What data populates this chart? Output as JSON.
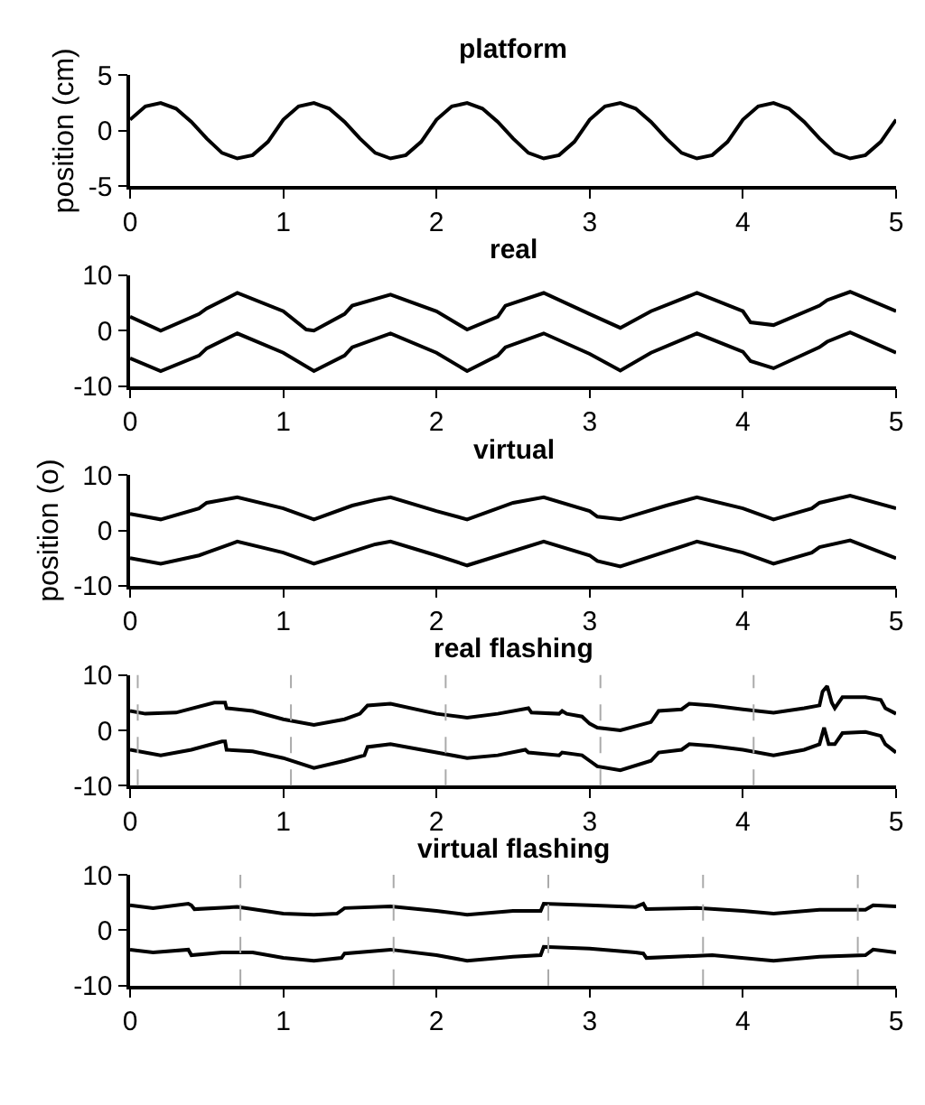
{
  "chart_data": [
    {
      "type": "line",
      "title": "platform",
      "ylabel": "position (cm)",
      "xlim": [
        0,
        5
      ],
      "xticks": [
        0,
        1,
        2,
        3,
        4,
        5
      ],
      "ylim": [
        -5,
        5
      ],
      "yticks": [
        -5,
        0,
        5
      ],
      "marker": "none",
      "line_style": "solid",
      "series": [
        {
          "color": "#000000",
          "x": [
            0,
            0.1,
            0.2,
            0.3,
            0.4,
            0.5,
            0.6,
            0.7,
            0.8,
            0.9,
            1.0,
            1.1,
            1.2,
            1.3,
            1.4,
            1.5,
            1.6,
            1.7,
            1.8,
            1.9,
            2.0,
            2.1,
            2.2,
            2.3,
            2.4,
            2.5,
            2.6,
            2.7,
            2.8,
            2.9,
            3.0,
            3.1,
            3.2,
            3.3,
            3.4,
            3.5,
            3.6,
            3.7,
            3.8,
            3.9,
            4.0,
            4.1,
            4.2,
            4.3,
            4.4,
            4.5,
            4.6,
            4.7,
            4.8,
            4.9,
            5.0
          ],
          "values": [
            1.0,
            2.2,
            2.5,
            2.0,
            0.8,
            -0.7,
            -2.0,
            -2.5,
            -2.2,
            -1.0,
            1.0,
            2.2,
            2.5,
            2.0,
            0.8,
            -0.7,
            -2.0,
            -2.5,
            -2.2,
            -1.0,
            1.0,
            2.2,
            2.5,
            2.0,
            0.8,
            -0.7,
            -2.0,
            -2.5,
            -2.2,
            -1.0,
            1.0,
            2.2,
            2.5,
            2.0,
            0.8,
            -0.7,
            -2.0,
            -2.5,
            -2.2,
            -1.0,
            1.0,
            2.2,
            2.5,
            2.0,
            0.8,
            -0.7,
            -2.0,
            -2.5,
            -2.2,
            -1.0,
            1.0
          ]
        }
      ]
    },
    {
      "type": "line",
      "title": "real",
      "xlim": [
        0,
        5
      ],
      "xticks": [
        0,
        1,
        2,
        3,
        4,
        5
      ],
      "ylim": [
        -10,
        10
      ],
      "yticks": [
        -10,
        0,
        10
      ],
      "marker": "none",
      "line_style": "solid",
      "series": [
        {
          "color": "#000000",
          "x": [
            0,
            0.2,
            0.45,
            0.5,
            0.7,
            1.0,
            1.15,
            1.2,
            1.4,
            1.45,
            1.7,
            2.0,
            2.15,
            2.2,
            2.4,
            2.45,
            2.7,
            3.0,
            3.2,
            3.4,
            3.7,
            4.0,
            4.05,
            4.2,
            4.5,
            4.55,
            4.7,
            5.0
          ],
          "values": [
            2.5,
            0,
            3,
            4,
            6.8,
            3.5,
            0.2,
            0,
            3,
            4.5,
            6.5,
            3.5,
            1,
            0.2,
            2.5,
            4.5,
            6.8,
            3,
            0.5,
            3.5,
            6.8,
            3.5,
            1.5,
            1,
            4.5,
            5.5,
            7,
            3.5
          ]
        },
        {
          "color": "#000000",
          "x": [
            0,
            0.2,
            0.45,
            0.5,
            0.7,
            1.0,
            1.2,
            1.4,
            1.45,
            1.7,
            2.0,
            2.2,
            2.4,
            2.45,
            2.7,
            3.0,
            3.2,
            3.4,
            3.7,
            4.0,
            4.05,
            4.2,
            4.5,
            4.55,
            4.7,
            5.0
          ],
          "values": [
            -5,
            -7.3,
            -4.5,
            -3.2,
            -0.5,
            -4,
            -7.3,
            -4.5,
            -3,
            -0.5,
            -4,
            -7.3,
            -4.5,
            -3,
            -0.5,
            -4.2,
            -7.2,
            -4,
            -0.5,
            -3.8,
            -5.5,
            -6.8,
            -3,
            -2,
            -0.3,
            -4
          ]
        }
      ]
    },
    {
      "type": "line",
      "title": "virtual",
      "ylabel": "position (o)",
      "xlim": [
        0,
        5
      ],
      "xticks": [
        0,
        1,
        2,
        3,
        4,
        5
      ],
      "ylim": [
        -10,
        10
      ],
      "yticks": [
        -10,
        0,
        10
      ],
      "marker": "none",
      "line_style": "solid",
      "series": [
        {
          "color": "#000000",
          "x": [
            0,
            0.2,
            0.45,
            0.5,
            0.7,
            1.0,
            1.2,
            1.45,
            1.6,
            1.7,
            2.0,
            2.2,
            2.5,
            2.7,
            3.0,
            3.05,
            3.2,
            3.5,
            3.7,
            4.0,
            4.2,
            4.45,
            4.5,
            4.7,
            5.0
          ],
          "values": [
            3,
            2,
            4,
            5,
            6,
            4,
            2,
            4.5,
            5.5,
            6,
            3.5,
            2,
            5,
            6,
            3.5,
            2.5,
            2,
            4.5,
            6,
            4,
            2,
            4,
            5,
            6.3,
            4
          ]
        },
        {
          "color": "#000000",
          "x": [
            0,
            0.2,
            0.45,
            0.5,
            0.7,
            1.0,
            1.2,
            1.6,
            1.7,
            2.0,
            2.2,
            2.7,
            3.0,
            3.05,
            3.2,
            3.7,
            4.0,
            4.2,
            4.45,
            4.5,
            4.7,
            5.0
          ],
          "values": [
            -5,
            -6,
            -4.5,
            -4,
            -2,
            -4,
            -6,
            -2.5,
            -2,
            -4.5,
            -6.3,
            -2,
            -4.5,
            -5.5,
            -6.5,
            -2,
            -4,
            -6,
            -4,
            -3,
            -1.8,
            -5
          ]
        }
      ]
    },
    {
      "type": "line",
      "title": "real flashing",
      "xlim": [
        0,
        5
      ],
      "xticks": [
        0,
        1,
        2,
        3,
        4,
        5
      ],
      "ylim": [
        -10,
        10
      ],
      "yticks": [
        -10,
        0,
        10
      ],
      "marker": "none",
      "line_style": "solid",
      "ref_lines": [
        {
          "axis": "x",
          "value": 0.05,
          "color": "#aaaaaa",
          "line_style": "dashed"
        },
        {
          "axis": "x",
          "value": 1.05,
          "color": "#aaaaaa",
          "line_style": "dashed"
        },
        {
          "axis": "x",
          "value": 2.06,
          "color": "#aaaaaa",
          "line_style": "dashed"
        },
        {
          "axis": "x",
          "value": 3.07,
          "color": "#aaaaaa",
          "line_style": "dashed"
        },
        {
          "axis": "x",
          "value": 4.07,
          "color": "#aaaaaa",
          "line_style": "dashed"
        }
      ],
      "series": [
        {
          "color": "#000000",
          "x": [
            0,
            0.1,
            0.3,
            0.55,
            0.62,
            0.63,
            0.8,
            1.0,
            1.2,
            1.4,
            1.5,
            1.55,
            1.7,
            2.0,
            2.2,
            2.4,
            2.6,
            2.62,
            2.8,
            2.82,
            2.85,
            2.95,
            3.0,
            3.05,
            3.2,
            3.4,
            3.45,
            3.6,
            3.65,
            3.8,
            4.0,
            4.2,
            4.4,
            4.5,
            4.52,
            4.55,
            4.58,
            4.6,
            4.65,
            4.8,
            4.9,
            4.93,
            5.0
          ],
          "values": [
            3.5,
            3,
            3.2,
            5,
            5,
            4,
            3.5,
            2,
            1,
            2,
            3,
            4.5,
            4.8,
            3,
            2.3,
            3,
            4,
            3.2,
            3,
            3.5,
            3,
            2.5,
            1.2,
            0.5,
            0,
            1.5,
            3.5,
            3.8,
            4.8,
            4.5,
            3.8,
            3.2,
            4,
            4.5,
            7,
            8,
            5,
            4,
            6,
            6,
            5.5,
            4,
            3
          ]
        },
        {
          "color": "#000000",
          "x": [
            0,
            0.2,
            0.4,
            0.6,
            0.62,
            0.63,
            0.8,
            1.0,
            1.2,
            1.4,
            1.53,
            1.55,
            1.7,
            2.0,
            2.2,
            2.4,
            2.58,
            2.6,
            2.8,
            2.82,
            2.95,
            3.0,
            3.05,
            3.2,
            3.4,
            3.45,
            3.6,
            3.65,
            3.8,
            4.0,
            4.2,
            4.4,
            4.5,
            4.53,
            4.56,
            4.6,
            4.65,
            4.8,
            4.9,
            4.93,
            5.0
          ],
          "values": [
            -3.5,
            -4.5,
            -3.5,
            -2,
            -2,
            -3.5,
            -3.8,
            -5,
            -6.8,
            -5.5,
            -4.5,
            -3,
            -2.5,
            -4,
            -5,
            -4.5,
            -3.5,
            -4,
            -4.5,
            -4,
            -4.5,
            -5.5,
            -6.5,
            -7.2,
            -5.5,
            -4,
            -3.5,
            -2.5,
            -2.8,
            -3.5,
            -4.5,
            -3.5,
            -2.5,
            0.5,
            -2.5,
            -2.5,
            -0.5,
            -0.3,
            -1,
            -2.5,
            -4
          ]
        }
      ]
    },
    {
      "type": "line",
      "title": "virtual flashing",
      "xlim": [
        0,
        5
      ],
      "xticks": [
        0,
        1,
        2,
        3,
        4,
        5
      ],
      "ylim": [
        -10,
        10
      ],
      "yticks": [
        -10,
        0,
        10
      ],
      "marker": "none",
      "line_style": "solid",
      "ref_lines": [
        {
          "axis": "x",
          "value": 0.72,
          "color": "#aaaaaa",
          "line_style": "dashed"
        },
        {
          "axis": "x",
          "value": 1.72,
          "color": "#aaaaaa",
          "line_style": "dashed"
        },
        {
          "axis": "x",
          "value": 2.73,
          "color": "#aaaaaa",
          "line_style": "dashed"
        },
        {
          "axis": "x",
          "value": 3.74,
          "color": "#aaaaaa",
          "line_style": "dashed"
        },
        {
          "axis": "x",
          "value": 4.75,
          "color": "#aaaaaa",
          "line_style": "dashed"
        }
      ],
      "series": [
        {
          "color": "#000000",
          "x": [
            0,
            0.15,
            0.38,
            0.4,
            0.42,
            0.7,
            1.0,
            1.2,
            1.35,
            1.4,
            1.7,
            2.0,
            2.2,
            2.5,
            2.68,
            2.7,
            3.0,
            3.3,
            3.35,
            3.37,
            3.7,
            4.0,
            4.2,
            4.5,
            4.8,
            4.85,
            5.0
          ],
          "values": [
            4.5,
            4,
            4.8,
            4.5,
            3.8,
            4.2,
            3,
            2.8,
            3,
            4,
            4.3,
            3.5,
            2.8,
            3.5,
            3.5,
            4.8,
            4.5,
            4.2,
            4.8,
            3.8,
            4,
            3.5,
            3,
            3.7,
            3.7,
            4.5,
            4.3
          ]
        },
        {
          "color": "#000000",
          "x": [
            0,
            0.15,
            0.38,
            0.4,
            0.6,
            0.8,
            1.0,
            1.2,
            1.38,
            1.4,
            1.7,
            2.0,
            2.2,
            2.5,
            2.68,
            2.7,
            3.0,
            3.3,
            3.35,
            3.37,
            3.8,
            4.2,
            4.5,
            4.8,
            4.85,
            5.0
          ],
          "values": [
            -3.5,
            -4,
            -3.5,
            -4.5,
            -4,
            -4,
            -5,
            -5.5,
            -5,
            -4.2,
            -3.5,
            -4.5,
            -5.5,
            -4.8,
            -4.5,
            -3,
            -3.3,
            -4,
            -4.2,
            -5,
            -4.5,
            -5.5,
            -4.8,
            -4.5,
            -3.5,
            -4
          ]
        }
      ]
    }
  ]
}
